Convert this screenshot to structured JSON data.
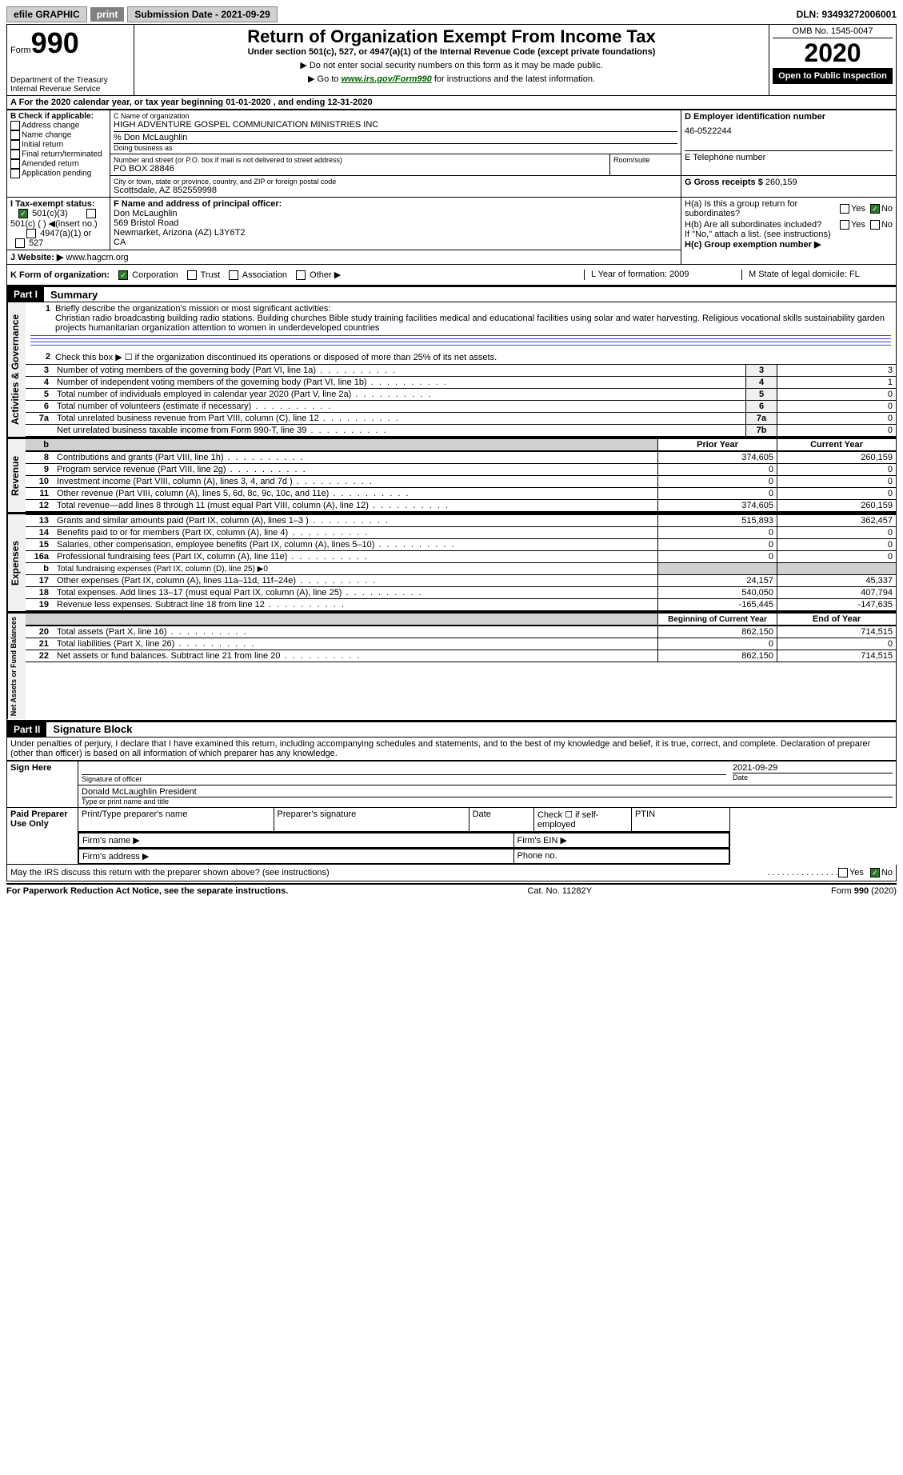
{
  "topbar": {
    "efile": "efile GRAPHIC",
    "print": "print",
    "submission": "Submission Date - 2021-09-29",
    "dln": "DLN: 93493272006001"
  },
  "header": {
    "form": "Form",
    "form_num": "990",
    "dept": "Department of the Treasury\nInternal Revenue Service",
    "title": "Return of Organization Exempt From Income Tax",
    "subtitle": "Under section 501(c), 527, or 4947(a)(1) of the Internal Revenue Code (except private foundations)",
    "note1": "Do not enter social security numbers on this form as it may be made public.",
    "note2_a": "Go to ",
    "note2_link": "www.irs.gov/Form990",
    "note2_b": " for instructions and the latest information.",
    "omb": "OMB No. 1545-0047",
    "year": "2020",
    "open": "Open to Public Inspection"
  },
  "section_a": {
    "line": "A For the 2020 calendar year, or tax year beginning 01-01-2020    , and ending 12-31-2020",
    "b_label": "B Check if applicable:",
    "b_items": [
      "Address change",
      "Name change",
      "Initial return",
      "Final return/terminated",
      "Amended return",
      "Application pending"
    ],
    "c_label": "C Name of organization",
    "c_name": "HIGH ADVENTURE GOSPEL COMMUNICATION MINISTRIES INC",
    "care_of": "% Don McLaughlin",
    "dba": "Doing business as",
    "addr_label": "Number and street (or P.O. box if mail is not delivered to street address)",
    "addr": "PO BOX 28846",
    "room": "Room/suite",
    "city_label": "City or town, state or province, country, and ZIP or foreign postal code",
    "city": "Scottsdale, AZ  852559998",
    "d_label": "D Employer identification number",
    "d_ein": "46-0522244",
    "e_label": "E Telephone number",
    "g_label": "G Gross receipts $",
    "g_val": "260,159",
    "f_label": "F  Name and address of principal officer:",
    "f_name": "Don McLaughlin",
    "f_addr": "569 Bristol Road\nNewmarket, Arizona (AZ)  L3Y6T2\nCA",
    "ha": "H(a)  Is this a group return for subordinates?",
    "hb": "H(b)  Are all subordinates included?",
    "hb_note": "If \"No,\" attach a list. (see instructions)",
    "hc": "H(c)  Group exemption number ▶",
    "yes": "Yes",
    "no": "No",
    "i_label": "I    Tax-exempt status:",
    "i_501c3": "501(c)(3)",
    "i_501c": "501(c) (  ) ◀(insert no.)",
    "i_4947": "4947(a)(1) or",
    "i_527": "527",
    "j_label": "J   Website: ▶",
    "j_site": "www.hagcm.org",
    "k_label": "K Form of organization:",
    "k_corp": "Corporation",
    "k_trust": "Trust",
    "k_assoc": "Association",
    "k_other": "Other ▶",
    "l_label": "L Year of formation: 2009",
    "m_label": "M State of legal domicile: FL"
  },
  "part1": {
    "label": "Part I",
    "title": "Summary",
    "q1": "Briefly describe the organization's mission or most significant activities:",
    "mission": "Christian radio broadcasting building radio stations. Building churches Bible study training facilities medical and educational facilities using solar and water harvesting. Religious vocational skills sustainability garden projects humanitarian organization attention to women in underdeveloped countries",
    "q2": "Check this box ▶ ☐  if the organization discontinued its operations or disposed of more than 25% of its net assets.",
    "rows_gov": [
      {
        "n": "3",
        "t": "Number of voting members of the governing body (Part VI, line 1a)",
        "k": "3",
        "v": "3"
      },
      {
        "n": "4",
        "t": "Number of independent voting members of the governing body (Part VI, line 1b)",
        "k": "4",
        "v": "1"
      },
      {
        "n": "5",
        "t": "Total number of individuals employed in calendar year 2020 (Part V, line 2a)",
        "k": "5",
        "v": "0"
      },
      {
        "n": "6",
        "t": "Total number of volunteers (estimate if necessary)",
        "k": "6",
        "v": "0"
      },
      {
        "n": "7a",
        "t": "Total unrelated business revenue from Part VIII, column (C), line 12",
        "k": "7a",
        "v": "0"
      },
      {
        "n": "",
        "t": "Net unrelated business taxable income from Form 990-T, line 39",
        "k": "7b",
        "v": "0"
      }
    ],
    "hdr_prior": "Prior Year",
    "hdr_curr": "Current Year",
    "rows_rev": [
      {
        "n": "8",
        "t": "Contributions and grants (Part VIII, line 1h)",
        "p": "374,605",
        "c": "260,159"
      },
      {
        "n": "9",
        "t": "Program service revenue (Part VIII, line 2g)",
        "p": "0",
        "c": "0"
      },
      {
        "n": "10",
        "t": "Investment income (Part VIII, column (A), lines 3, 4, and 7d )",
        "p": "0",
        "c": "0"
      },
      {
        "n": "11",
        "t": "Other revenue (Part VIII, column (A), lines 5, 6d, 8c, 9c, 10c, and 11e)",
        "p": "0",
        "c": "0"
      },
      {
        "n": "12",
        "t": "Total revenue—add lines 8 through 11 (must equal Part VIII, column (A), line 12)",
        "p": "374,605",
        "c": "260,159"
      }
    ],
    "rows_exp": [
      {
        "n": "13",
        "t": "Grants and similar amounts paid (Part IX, column (A), lines 1–3 )",
        "p": "515,893",
        "c": "362,457"
      },
      {
        "n": "14",
        "t": "Benefits paid to or for members (Part IX, column (A), line 4)",
        "p": "0",
        "c": "0"
      },
      {
        "n": "15",
        "t": "Salaries, other compensation, employee benefits (Part IX, column (A), lines 5–10)",
        "p": "0",
        "c": "0"
      },
      {
        "n": "16a",
        "t": "Professional fundraising fees (Part IX, column (A), line 11e)",
        "p": "0",
        "c": "0"
      },
      {
        "n": "b",
        "t": "Total fundraising expenses (Part IX, column (D), line 25) ▶0",
        "p": "",
        "c": "",
        "gray": true
      },
      {
        "n": "17",
        "t": "Other expenses (Part IX, column (A), lines 11a–11d, 11f–24e)",
        "p": "24,157",
        "c": "45,337"
      },
      {
        "n": "18",
        "t": "Total expenses. Add lines 13–17 (must equal Part IX, column (A), line 25)",
        "p": "540,050",
        "c": "407,794"
      },
      {
        "n": "19",
        "t": "Revenue less expenses. Subtract line 18 from line 12",
        "p": "-165,445",
        "c": "-147,635"
      }
    ],
    "hdr_begin": "Beginning of Current Year",
    "hdr_end": "End of Year",
    "rows_net": [
      {
        "n": "20",
        "t": "Total assets (Part X, line 16)",
        "p": "862,150",
        "c": "714,515"
      },
      {
        "n": "21",
        "t": "Total liabilities (Part X, line 26)",
        "p": "0",
        "c": "0"
      },
      {
        "n": "22",
        "t": "Net assets or fund balances. Subtract line 21 from line 20",
        "p": "862,150",
        "c": "714,515"
      }
    ],
    "side_gov": "Activities & Governance",
    "side_rev": "Revenue",
    "side_exp": "Expenses",
    "side_net": "Net Assets or Fund Balances"
  },
  "part2": {
    "label": "Part II",
    "title": "Signature Block",
    "perjury": "Under penalties of perjury, I declare that I have examined this return, including accompanying schedules and statements, and to the best of my knowledge and belief, it is true, correct, and complete. Declaration of preparer (other than officer) is based on all information of which preparer has any knowledge.",
    "sign_here": "Sign Here",
    "sig_officer": "Signature of officer",
    "sig_date": "2021-09-29",
    "date": "Date",
    "name_title": "Donald McLaughlin  President",
    "type_name": "Type or print name and title",
    "paid": "Paid Preparer Use Only",
    "prep_name": "Print/Type preparer's name",
    "prep_sig": "Preparer's signature",
    "check_self": "Check ☐ if self-employed",
    "ptin": "PTIN",
    "firm_name": "Firm's name  ▶",
    "firm_ein": "Firm's EIN ▶",
    "firm_addr": "Firm's address ▶",
    "phone": "Phone no.",
    "discuss": "May the IRS discuss this return with the preparer shown above? (see instructions)"
  },
  "footer": {
    "pra": "For Paperwork Reduction Act Notice, see the separate instructions.",
    "cat": "Cat. No. 11282Y",
    "form": "Form 990 (2020)"
  }
}
